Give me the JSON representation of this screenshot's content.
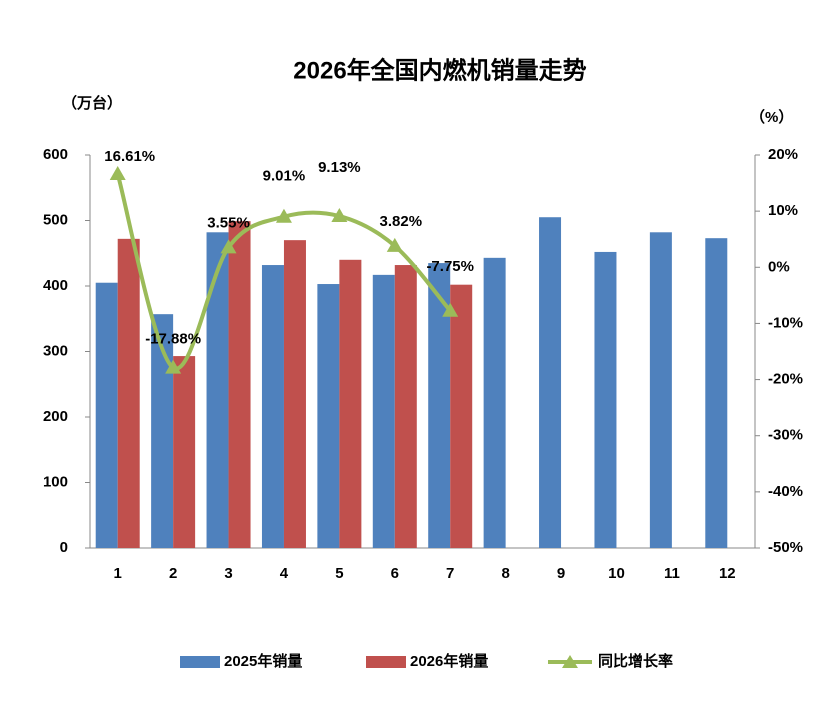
{
  "chart_data": {
    "type": "bar-line",
    "title": "2026年全国内燃机销量走势",
    "y_unit": "（万台）",
    "y2_unit": "（%）",
    "categories": [
      "1",
      "2",
      "3",
      "4",
      "5",
      "6",
      "7",
      "8",
      "9",
      "10",
      "11",
      "12"
    ],
    "series": [
      {
        "name": "2025年销量",
        "type": "bar",
        "color": "#4f81bd",
        "values": [
          405,
          357,
          482,
          432,
          403,
          417,
          435,
          443,
          505,
          452,
          482,
          473
        ]
      },
      {
        "name": "2026年销量",
        "type": "bar",
        "color": "#c0504d",
        "values": [
          472,
          293,
          499,
          470,
          440,
          432,
          402,
          null,
          null,
          null,
          null,
          null
        ]
      },
      {
        "name": "同比增长率",
        "type": "line",
        "axis": "y2",
        "color": "#9bbb59",
        "values": [
          16.61,
          -17.88,
          3.55,
          9.01,
          9.13,
          3.82,
          -7.75,
          null,
          null,
          null,
          null,
          null
        ],
        "value_labels": [
          "16.61%",
          "-17.88%",
          "3.55%",
          "9.01%",
          "9.13%",
          "3.82%",
          "-7.75%",
          null,
          null,
          null,
          null,
          null
        ]
      }
    ],
    "ylim": [
      0,
      600
    ],
    "yticks": [
      0,
      100,
      200,
      300,
      400,
      500,
      600
    ],
    "y2lim": [
      -50,
      20
    ],
    "y2ticks": [
      {
        "value": 20,
        "label": "20%"
      },
      {
        "value": 10,
        "label": "10%"
      },
      {
        "value": 0,
        "label": "0%"
      },
      {
        "value": -10,
        "label": "-10%"
      },
      {
        "value": -20,
        "label": "-20%"
      },
      {
        "value": -30,
        "label": "-30%"
      },
      {
        "value": -40,
        "label": "-40%"
      },
      {
        "value": -50,
        "label": "-50%"
      }
    ],
    "legend": "bottom",
    "grid": false
  }
}
